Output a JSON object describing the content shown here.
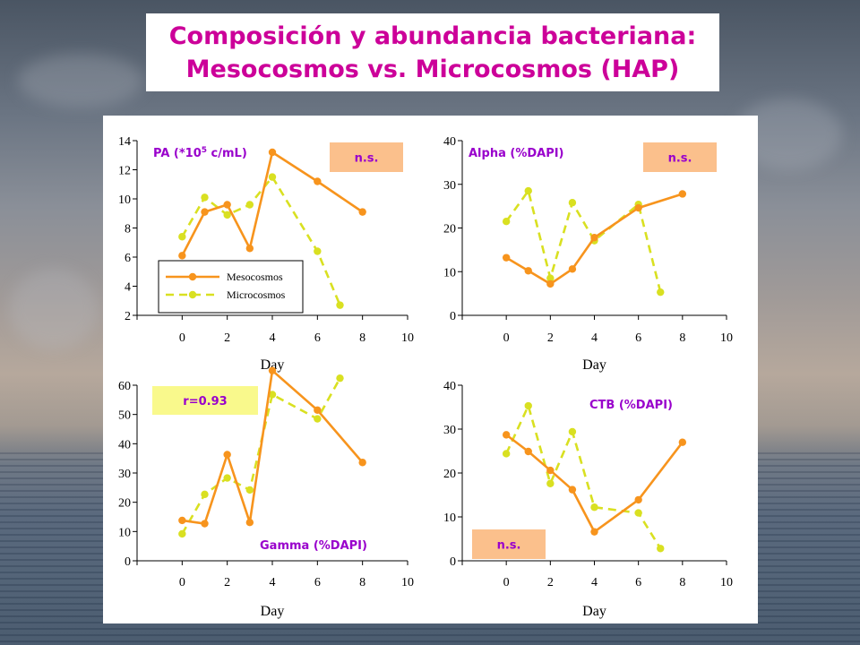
{
  "title": {
    "line1": "Composición y abundancia bacteriana:",
    "line2": "Mesocosmos vs. Microcosmos (HAP)"
  },
  "colors": {
    "mesocosmos": "#f7941d",
    "microcosmos": "#d9e021",
    "label": "#9900cc",
    "title": "#cc0099",
    "badge_orange": "#fbc08c",
    "badge_yellow": "#f9f98c"
  },
  "chart_data": [
    {
      "type": "line",
      "label": "PA (*10",
      "label_sup": "5",
      "label_tail": " c/mL)",
      "badge": "n.s.",
      "xlabel": "Day",
      "xlim": [
        -2,
        10
      ],
      "ylim": [
        2,
        14
      ],
      "xticks": [
        0,
        2,
        4,
        6,
        8,
        10
      ],
      "yticks": [
        2,
        4,
        6,
        8,
        10,
        12,
        14
      ],
      "legend": "bottom-left",
      "series": [
        {
          "name": "Mesocosmos",
          "x": [
            0,
            1,
            2,
            3,
            4,
            6,
            8
          ],
          "y": [
            6.1,
            9.1,
            9.6,
            6.6,
            13.2,
            11.2,
            9.1
          ]
        },
        {
          "name": "Microcosmos",
          "x": [
            0,
            1,
            2,
            3,
            4,
            6,
            7
          ],
          "y": [
            7.4,
            10.1,
            8.9,
            9.6,
            11.5,
            6.4,
            2.7
          ]
        }
      ]
    },
    {
      "type": "line",
      "label": "Alpha (%DAPI)",
      "badge": "n.s.",
      "xlabel": "Day",
      "xlim": [
        -2,
        10
      ],
      "ylim": [
        0,
        40
      ],
      "xticks": [
        0,
        2,
        4,
        6,
        8,
        10
      ],
      "yticks": [
        0,
        10,
        20,
        30,
        40
      ],
      "series": [
        {
          "name": "Mesocosmos",
          "x": [
            0,
            1,
            2,
            3,
            4,
            6,
            8
          ],
          "y": [
            13.2,
            10.2,
            7.2,
            10.6,
            17.8,
            24.6,
            27.8
          ]
        },
        {
          "name": "Microcosmos",
          "x": [
            0,
            1,
            2,
            3,
            4,
            6,
            7
          ],
          "y": [
            21.5,
            28.5,
            8.5,
            25.8,
            17.1,
            25.4,
            5.3
          ]
        }
      ]
    },
    {
      "type": "line",
      "label": "Gamma (%DAPI)",
      "badge": "r=0.93",
      "xlabel": "Day",
      "xlim": [
        -2,
        10
      ],
      "ylim": [
        0,
        60
      ],
      "xticks": [
        0,
        2,
        4,
        6,
        8,
        10
      ],
      "yticks": [
        0,
        10,
        20,
        30,
        40,
        50,
        60
      ],
      "series": [
        {
          "name": "Mesocosmos",
          "x": [
            0,
            1,
            2,
            3,
            4,
            6,
            8
          ],
          "y": [
            13.8,
            12.7,
            36.3,
            13.1,
            65,
            51.5,
            33.6
          ]
        },
        {
          "name": "Microcosmos",
          "x": [
            0,
            1,
            2,
            3,
            4,
            6,
            7
          ],
          "y": [
            9.2,
            22.7,
            28.3,
            24.2,
            56.8,
            48.5,
            62.4
          ]
        }
      ]
    },
    {
      "type": "line",
      "label": "CTB (%DAPI)",
      "badge": "n.s.",
      "xlabel": "Day",
      "xlim": [
        -2,
        10
      ],
      "ylim": [
        0,
        40
      ],
      "xticks": [
        0,
        2,
        4,
        6,
        8,
        10
      ],
      "yticks": [
        0,
        10,
        20,
        30,
        40
      ],
      "series": [
        {
          "name": "Mesocosmos",
          "x": [
            0,
            1,
            2,
            3,
            4,
            6,
            8
          ],
          "y": [
            28.7,
            24.9,
            20.6,
            16.2,
            6.6,
            13.9,
            27
          ]
        },
        {
          "name": "Microcosmos",
          "x": [
            0,
            1,
            2,
            3,
            4,
            6,
            7
          ],
          "y": [
            24.4,
            35.3,
            17.6,
            29.4,
            12.2,
            10.9,
            2.8
          ]
        }
      ]
    }
  ]
}
